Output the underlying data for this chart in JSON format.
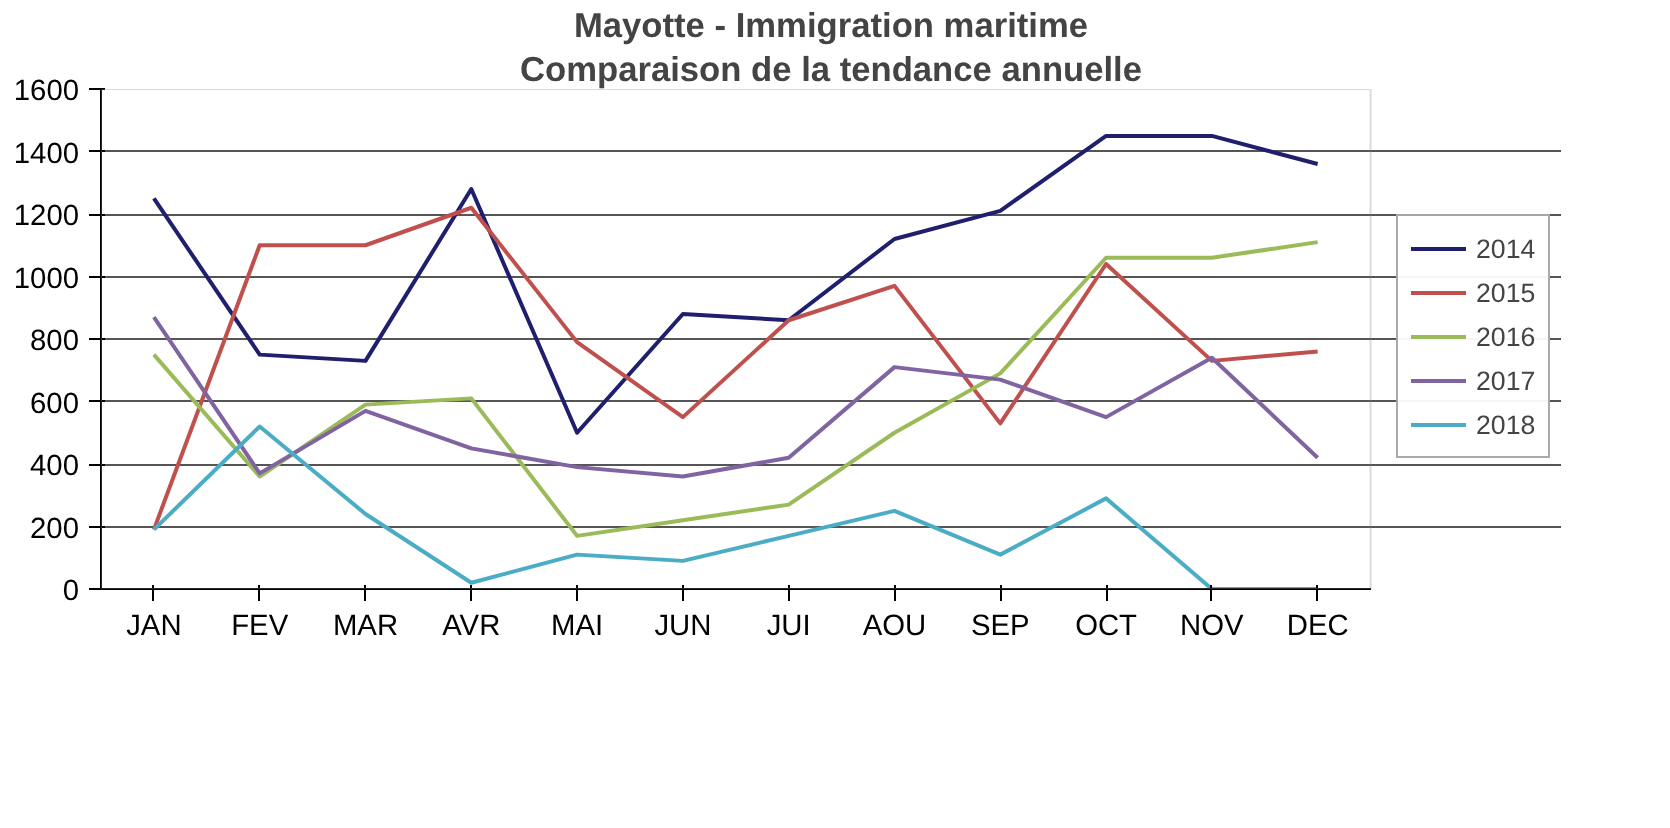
{
  "chart_data": {
    "type": "line",
    "title": "Mayotte - Immigration maritime",
    "subtitle": "Comparaison de la tendance annuelle",
    "categories": [
      "JAN",
      "FEV",
      "MAR",
      "AVR",
      "MAI",
      "JUN",
      "JUI",
      "AOU",
      "SEP",
      "OCT",
      "NOV",
      "DEC"
    ],
    "ylim": [
      0,
      1600
    ],
    "yticks": [
      0,
      200,
      400,
      600,
      800,
      1000,
      1200,
      1400,
      1600
    ],
    "grid": "y",
    "legend": "right",
    "marker": "none",
    "line_style": "solid",
    "series": [
      {
        "name": "2014",
        "color": "#1f1f6e",
        "values": [
          1250,
          750,
          730,
          1280,
          500,
          880,
          860,
          1120,
          1210,
          1450,
          1450,
          1360
        ]
      },
      {
        "name": "2015",
        "color": "#c0504d",
        "values": [
          190,
          1100,
          1100,
          1220,
          790,
          550,
          860,
          970,
          530,
          1040,
          730,
          760
        ]
      },
      {
        "name": "2016",
        "color": "#9bbb59",
        "values": [
          750,
          360,
          590,
          610,
          170,
          220,
          270,
          500,
          690,
          1060,
          1060,
          1110
        ]
      },
      {
        "name": "2017",
        "color": "#8064a2",
        "values": [
          870,
          370,
          570,
          450,
          390,
          360,
          420,
          710,
          670,
          550,
          740,
          420
        ]
      },
      {
        "name": "2018",
        "color": "#4bacc6",
        "values": [
          190,
          520,
          240,
          20,
          110,
          90,
          170,
          250,
          110,
          290,
          0,
          0
        ]
      }
    ]
  }
}
